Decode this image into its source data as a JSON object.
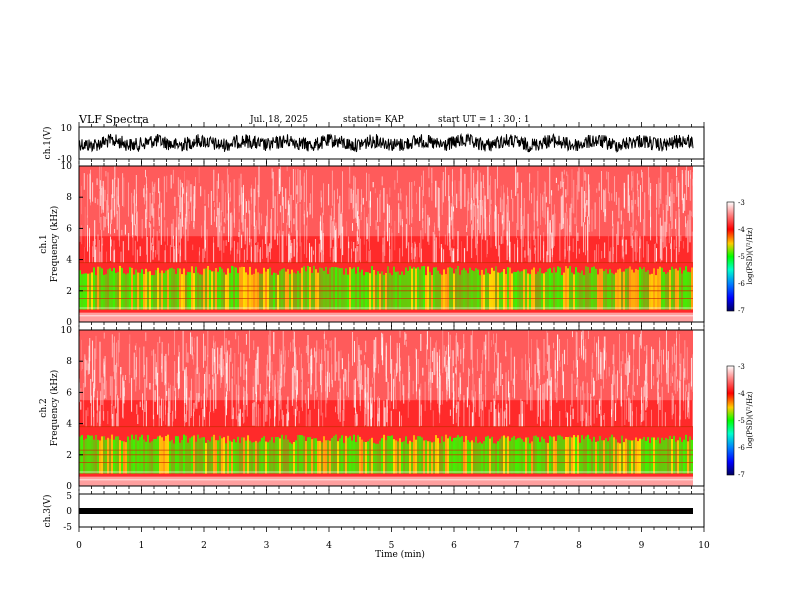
{
  "header": {
    "title": "VLF Spectra",
    "date": "Jul. 18, 2025",
    "station": "station= KAP",
    "start": "start UT =  1 : 30 : 1"
  },
  "chart_data": [
    {
      "type": "line",
      "name": "ch1-waveform",
      "ylabel": "ch.1(V)",
      "ylim": [
        -10,
        10
      ],
      "yticks": [
        "10",
        "-10"
      ],
      "xlim": [
        0,
        10
      ]
    },
    {
      "type": "heatmap",
      "name": "ch1-spectrogram",
      "ylabel": "ch.1 Frequency (kHz)",
      "ylim": [
        0,
        10
      ],
      "yticks": [
        "0",
        "2",
        "4",
        "6",
        "8",
        "10"
      ],
      "xlim": [
        0,
        10
      ],
      "colorbar": {
        "label": "log(PSD)(V²/Hz)",
        "range": [
          -7,
          -3
        ],
        "ticks": [
          "-3",
          "-4",
          "-5",
          "-6",
          "-7"
        ]
      }
    },
    {
      "type": "heatmap",
      "name": "ch2-spectrogram",
      "ylabel": "ch.2 Frequency (kHz)",
      "ylim": [
        0,
        10
      ],
      "yticks": [
        "0",
        "2",
        "4",
        "6",
        "8",
        "10"
      ],
      "xlim": [
        0,
        10
      ],
      "colorbar": {
        "label": "log(PSD)(V²/Hz)",
        "range": [
          -7,
          -3
        ],
        "ticks": [
          "-3",
          "-4",
          "-5",
          "-6",
          "-7"
        ]
      }
    },
    {
      "type": "line",
      "name": "ch3-waveform",
      "ylabel": "ch.3(V)",
      "ylim": [
        -5,
        5
      ],
      "yticks": [
        "5",
        "0",
        "-5"
      ],
      "xlim": [
        0,
        10
      ]
    }
  ],
  "xaxis": {
    "label": "Time (min)",
    "ticks": [
      "0",
      "1",
      "2",
      "3",
      "4",
      "5",
      "6",
      "7",
      "8",
      "9",
      "10"
    ]
  },
  "labels": {
    "ch1v": "ch.1(V)",
    "ch1f_a": "ch.1",
    "ch1f_b": "Frequency (kHz)",
    "ch2f_a": "ch.2",
    "ch2f_b": "Frequency (kHz)",
    "ch3v": "ch.3(V)",
    "cb_label": "log(PSD)(V²/Hz)"
  },
  "colors": {
    "red": "#ff1a1a",
    "green": "#33ff00",
    "yellow": "#ffe600",
    "white": "#ffffff"
  }
}
